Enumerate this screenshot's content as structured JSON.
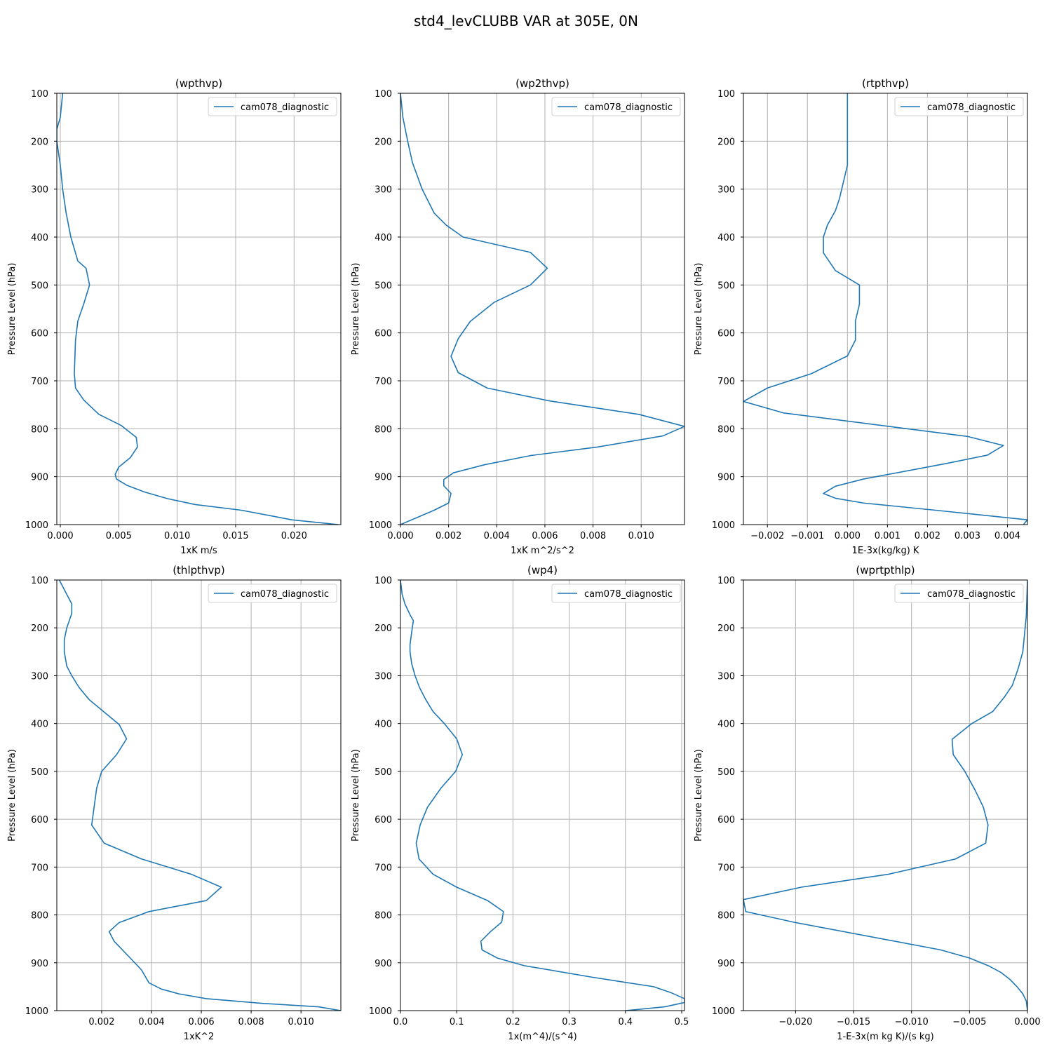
{
  "figure": {
    "title": "std4_levCLUBB VAR at 305E, 0N"
  },
  "colors": {
    "line": "#1f77b4",
    "grid": "#b0b0b0",
    "axes": "#000000"
  },
  "chart_data": [
    {
      "type": "line",
      "title": "(wpthvp)",
      "xlabel": "1xK m/s",
      "ylabel": "Pressure Level (hPa)",
      "xlim": [
        -0.0003,
        0.024
      ],
      "ylim": [
        1000,
        100
      ],
      "xticks": [
        0.0,
        0.005,
        0.01,
        0.015,
        0.02
      ],
      "xtick_labels": [
        "0.000",
        "0.005",
        "0.010",
        "0.015",
        "0.020"
      ],
      "yticks": [
        100,
        200,
        300,
        400,
        500,
        600,
        700,
        800,
        900,
        1000
      ],
      "ytick_labels": [
        "100",
        "200",
        "300",
        "400",
        "500",
        "600",
        "700",
        "800",
        "900",
        "1000"
      ],
      "grid": true,
      "legend": "upper right",
      "series": [
        {
          "name": "cam078_diagnostic",
          "x": [
            0.0002,
            0.0,
            -0.0003,
            -0.0003,
            0.0,
            0.0002,
            0.0005,
            0.0009,
            0.0015,
            0.0022,
            0.0025,
            0.002,
            0.0015,
            0.0013,
            0.0012,
            0.0013,
            0.002,
            0.0033,
            0.0052,
            0.0065,
            0.0066,
            0.006,
            0.005,
            0.0047,
            0.0048,
            0.0057,
            0.0072,
            0.0092,
            0.0115,
            0.0155,
            0.0198,
            0.0238
          ],
          "y": [
            100,
            150,
            175,
            200,
            250,
            300,
            350,
            400,
            450,
            465,
            500,
            540,
            575,
            615,
            685,
            715,
            740,
            770,
            793,
            818,
            838,
            860,
            880,
            895,
            905,
            918,
            932,
            946,
            958,
            970,
            990,
            1000
          ]
        }
      ]
    },
    {
      "type": "line",
      "title": "(wp2thvp)",
      "xlabel": "1xK m^2/s^2",
      "ylabel": "Pressure Level (hPa)",
      "xlim": [
        0.0,
        0.0118
      ],
      "ylim": [
        1000,
        100
      ],
      "xticks": [
        0.0,
        0.002,
        0.004,
        0.006,
        0.008,
        0.01
      ],
      "xtick_labels": [
        "0.000",
        "0.002",
        "0.004",
        "0.006",
        "0.008",
        "0.010"
      ],
      "yticks": [
        100,
        200,
        300,
        400,
        500,
        600,
        700,
        800,
        900,
        1000
      ],
      "ytick_labels": [
        "100",
        "200",
        "300",
        "400",
        "500",
        "600",
        "700",
        "800",
        "900",
        "1000"
      ],
      "grid": true,
      "legend": "upper right",
      "series": [
        {
          "name": "cam078_diagnostic",
          "x": [
            0.0,
            0.0001,
            0.0002,
            0.0003,
            0.0005,
            0.0009,
            0.0014,
            0.0019,
            0.0026,
            0.0054,
            0.0061,
            0.0054,
            0.0039,
            0.0029,
            0.0024,
            0.0021,
            0.0024,
            0.0036,
            0.0062,
            0.0099,
            0.0118,
            0.0109,
            0.0082,
            0.0054,
            0.0035,
            0.0022,
            0.0018,
            0.0018,
            0.0021,
            0.002,
            0.0014,
            0.0
          ],
          "y": [
            100,
            150,
            175,
            200,
            245,
            300,
            350,
            375,
            400,
            432,
            465,
            500,
            536,
            576,
            612,
            649,
            683,
            715,
            742,
            770,
            795,
            815,
            838,
            856,
            875,
            892,
            906,
            919,
            935,
            955,
            970,
            1000
          ]
        }
      ]
    },
    {
      "type": "line",
      "title": "(rtpthvp)",
      "xlabel": "1E-3x(kg/kg) K",
      "ylabel": "Pressure Level (hPa)",
      "xlim": [
        -0.0026,
        0.0045
      ],
      "ylim": [
        1000,
        100
      ],
      "xticks": [
        -0.002,
        -0.001,
        0.0,
        0.001,
        0.002,
        0.003,
        0.004
      ],
      "xtick_labels": [
        "−0.002",
        "−0.001",
        "0.000",
        "0.001",
        "0.002",
        "0.003",
        "0.004"
      ],
      "yticks": [
        100,
        200,
        300,
        400,
        500,
        600,
        700,
        800,
        900,
        1000
      ],
      "ytick_labels": [
        "100",
        "200",
        "300",
        "400",
        "500",
        "600",
        "700",
        "800",
        "900",
        "1000"
      ],
      "grid": true,
      "legend": "upper right",
      "series": [
        {
          "name": "cam078_diagnostic",
          "x": [
            0.0,
            0.0,
            0.0,
            -0.0001,
            -0.0002,
            -0.0003,
            -0.0005,
            -0.0006,
            -0.0006,
            -0.0003,
            0.0003,
            0.0003,
            0.0002,
            0.0002,
            0.0,
            -0.0009,
            -0.002,
            -0.0026,
            -0.0016,
            0.003,
            0.0039,
            0.0035,
            0.0025,
            0.0004,
            -0.0003,
            -0.0006,
            -0.0003,
            0.0004,
            0.0022,
            0.0045,
            0.0044
          ],
          "y": [
            100,
            200,
            250,
            285,
            320,
            345,
            375,
            400,
            433,
            470,
            500,
            540,
            575,
            615,
            648,
            685,
            715,
            743,
            767,
            816,
            835,
            855,
            872,
            905,
            920,
            935,
            945,
            955,
            970,
            990,
            1000
          ]
        }
      ]
    },
    {
      "type": "line",
      "title": "(thlpthvp)",
      "xlabel": "1xK^2",
      "ylabel": "Pressure Level (hPa)",
      "xlim": [
        0.0002,
        0.0116
      ],
      "ylim": [
        1000,
        100
      ],
      "xticks": [
        0.002,
        0.004,
        0.006,
        0.008,
        0.01
      ],
      "xtick_labels": [
        "0.002",
        "0.004",
        "0.006",
        "0.008",
        "0.010"
      ],
      "yticks": [
        100,
        200,
        300,
        400,
        500,
        600,
        700,
        800,
        900,
        1000
      ],
      "ytick_labels": [
        "100",
        "200",
        "300",
        "400",
        "500",
        "600",
        "700",
        "800",
        "900",
        "1000"
      ],
      "grid": true,
      "legend": "upper right",
      "series": [
        {
          "name": "cam078_diagnostic",
          "x": [
            0.0003,
            0.0006,
            0.0008,
            0.0008,
            0.0006,
            0.0005,
            0.0005,
            0.0006,
            0.0008,
            0.0011,
            0.0015,
            0.0027,
            0.003,
            0.0026,
            0.002,
            0.0018,
            0.0016,
            0.0021,
            0.0036,
            0.0056,
            0.0068,
            0.0062,
            0.0039,
            0.0027,
            0.0023,
            0.0025,
            0.0032,
            0.0036,
            0.0039,
            0.0044,
            0.0051,
            0.0062,
            0.0085,
            0.0107,
            0.0116
          ],
          "y": [
            100,
            130,
            150,
            170,
            200,
            225,
            250,
            280,
            300,
            325,
            350,
            402,
            432,
            465,
            500,
            535,
            612,
            650,
            683,
            715,
            742,
            770,
            793,
            816,
            835,
            855,
            893,
            915,
            942,
            955,
            965,
            975,
            985,
            992,
            1000
          ]
        }
      ]
    },
    {
      "type": "line",
      "title": "(wp4)",
      "xlabel": "1x(m^4)/(s^4)",
      "ylabel": "Pressure Level (hPa)",
      "xlim": [
        0.0,
        0.505
      ],
      "ylim": [
        1000,
        100
      ],
      "xticks": [
        0.0,
        0.1,
        0.2,
        0.3,
        0.4,
        0.5
      ],
      "xtick_labels": [
        "0.0",
        "0.1",
        "0.2",
        "0.3",
        "0.4",
        "0.5"
      ],
      "yticks": [
        100,
        200,
        300,
        400,
        500,
        600,
        700,
        800,
        900,
        1000
      ],
      "ytick_labels": [
        "100",
        "200",
        "300",
        "400",
        "500",
        "600",
        "700",
        "800",
        "900",
        "1000"
      ],
      "grid": true,
      "legend": "upper right",
      "series": [
        {
          "name": "cam078_diagnostic",
          "x": [
            0.0,
            0.003,
            0.008,
            0.018,
            0.023,
            0.021,
            0.017,
            0.017,
            0.02,
            0.026,
            0.034,
            0.045,
            0.058,
            0.078,
            0.1,
            0.11,
            0.098,
            0.072,
            0.048,
            0.035,
            0.028,
            0.033,
            0.058,
            0.1,
            0.155,
            0.183,
            0.18,
            0.16,
            0.143,
            0.145,
            0.172,
            0.22,
            0.34,
            0.45,
            0.48,
            0.505,
            0.505,
            0.47,
            0.4
          ],
          "y": [
            100,
            130,
            150,
            175,
            185,
            200,
            235,
            250,
            275,
            300,
            325,
            350,
            375,
            400,
            432,
            465,
            500,
            535,
            575,
            612,
            650,
            683,
            715,
            742,
            770,
            793,
            815,
            835,
            855,
            873,
            890,
            906,
            930,
            950,
            962,
            975,
            983,
            992,
            1000
          ]
        }
      ]
    },
    {
      "type": "line",
      "title": "(wprtpthlp)",
      "xlabel": "1-E-3x(m kg K)/(s kg)",
      "ylabel": "Pressure Level (hPa)",
      "xlim": [
        -0.0245,
        0.0
      ],
      "ylim": [
        1000,
        100
      ],
      "xticks": [
        -0.02,
        -0.015,
        -0.01,
        -0.005,
        0.0
      ],
      "xtick_labels": [
        "−0.020",
        "−0.015",
        "−0.010",
        "−0.005",
        "0.000"
      ],
      "yticks": [
        100,
        200,
        300,
        400,
        500,
        600,
        700,
        800,
        900,
        1000
      ],
      "ytick_labels": [
        "100",
        "200",
        "300",
        "400",
        "500",
        "600",
        "700",
        "800",
        "900",
        "1000"
      ],
      "grid": true,
      "legend": "upper right",
      "series": [
        {
          "name": "cam078_diagnostic",
          "x": [
            0.0,
            -0.0001,
            -0.0002,
            -0.0004,
            -0.0008,
            -0.0013,
            -0.002,
            -0.003,
            -0.0048,
            -0.0065,
            -0.0064,
            -0.0054,
            -0.0045,
            -0.0038,
            -0.0034,
            -0.0036,
            -0.0062,
            -0.012,
            -0.0195,
            -0.0245,
            -0.0243,
            -0.02,
            -0.0075,
            -0.005,
            -0.0033,
            -0.0023,
            -0.0015,
            -0.0009,
            -0.0004,
            -0.0001,
            0.0
          ],
          "y": [
            100,
            175,
            200,
            250,
            285,
            320,
            345,
            375,
            400,
            433,
            465,
            500,
            540,
            575,
            612,
            650,
            683,
            715,
            742,
            768,
            793,
            816,
            873,
            890,
            907,
            920,
            935,
            950,
            965,
            980,
            1000
          ]
        }
      ]
    }
  ]
}
